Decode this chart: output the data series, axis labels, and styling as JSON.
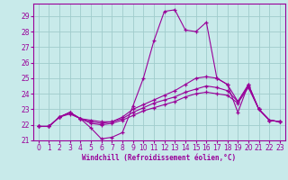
{
  "xlabel": "Windchill (Refroidissement éolien,°C)",
  "background_color": "#c8eaea",
  "grid_color": "#a0cccc",
  "line_color": "#990099",
  "xlim": [
    -0.5,
    23.5
  ],
  "ylim": [
    21,
    29.8
  ],
  "yticks": [
    21,
    22,
    23,
    24,
    25,
    26,
    27,
    28,
    29
  ],
  "xticks": [
    0,
    1,
    2,
    3,
    4,
    5,
    6,
    7,
    8,
    9,
    10,
    11,
    12,
    13,
    14,
    15,
    16,
    17,
    18,
    19,
    20,
    21,
    22,
    23
  ],
  "series": [
    {
      "x": [
        0,
        1,
        2,
        3,
        4,
        5,
        6,
        7,
        8,
        9,
        10,
        11,
        12,
        13,
        14,
        15,
        16,
        17,
        18,
        19,
        20,
        21,
        22,
        23
      ],
      "y": [
        21.9,
        21.9,
        22.5,
        22.8,
        22.4,
        21.8,
        21.1,
        21.2,
        21.5,
        23.2,
        25.0,
        27.4,
        29.3,
        29.4,
        28.1,
        28.0,
        28.6,
        25.0,
        24.6,
        22.8,
        24.6,
        23.0,
        22.3,
        22.2
      ]
    },
    {
      "x": [
        0,
        1,
        2,
        3,
        4,
        5,
        6,
        7,
        8,
        9,
        10,
        11,
        12,
        13,
        14,
        15,
        16,
        17,
        18,
        19,
        20,
        21,
        22,
        23
      ],
      "y": [
        21.9,
        21.9,
        22.5,
        22.8,
        22.4,
        22.3,
        22.2,
        22.2,
        22.5,
        23.0,
        23.3,
        23.6,
        23.9,
        24.2,
        24.6,
        25.0,
        25.1,
        25.0,
        24.6,
        23.5,
        24.6,
        23.0,
        22.3,
        22.2
      ]
    },
    {
      "x": [
        0,
        1,
        2,
        3,
        4,
        5,
        6,
        7,
        8,
        9,
        10,
        11,
        12,
        13,
        14,
        15,
        16,
        17,
        18,
        19,
        20,
        21,
        22,
        23
      ],
      "y": [
        21.9,
        21.9,
        22.5,
        22.8,
        22.4,
        22.2,
        22.1,
        22.2,
        22.4,
        22.8,
        23.1,
        23.4,
        23.6,
        23.8,
        24.1,
        24.3,
        24.5,
        24.4,
        24.2,
        23.5,
        24.5,
        23.0,
        22.3,
        22.2
      ]
    },
    {
      "x": [
        0,
        1,
        2,
        3,
        4,
        5,
        6,
        7,
        8,
        9,
        10,
        11,
        12,
        13,
        14,
        15,
        16,
        17,
        18,
        19,
        20,
        21,
        22,
        23
      ],
      "y": [
        21.9,
        21.9,
        22.5,
        22.7,
        22.4,
        22.1,
        22.0,
        22.1,
        22.3,
        22.6,
        22.9,
        23.1,
        23.3,
        23.5,
        23.8,
        24.0,
        24.1,
        24.0,
        23.9,
        23.4,
        24.4,
        23.0,
        22.3,
        22.2
      ]
    }
  ]
}
